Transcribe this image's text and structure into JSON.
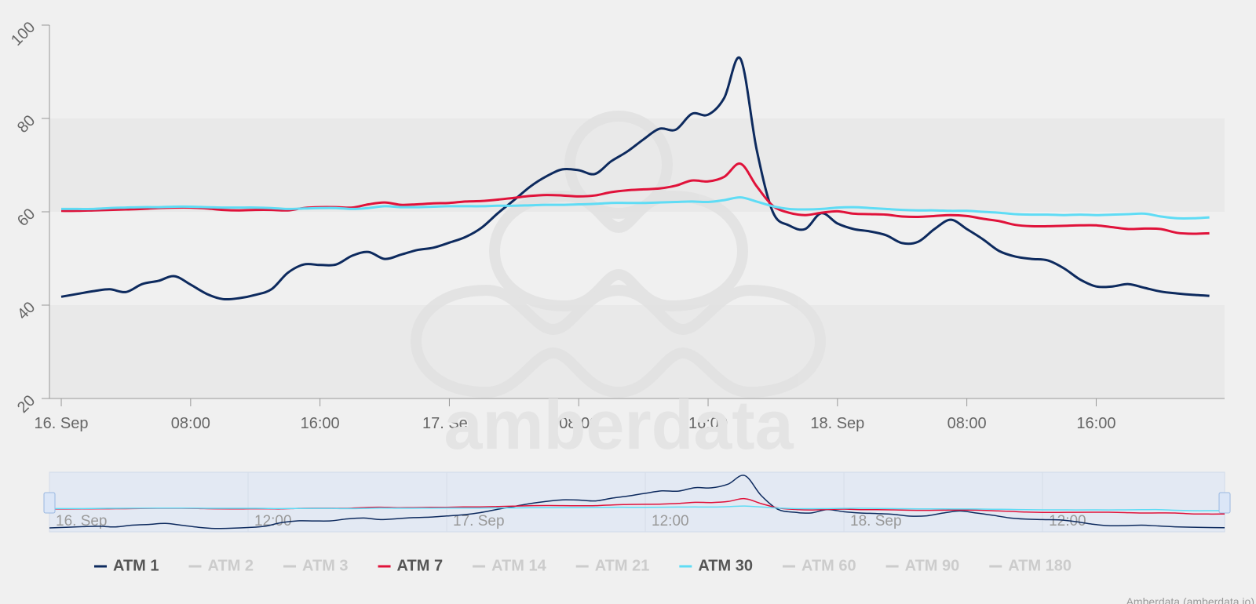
{
  "chart_data": {
    "type": "line",
    "watermark": "amberdata",
    "credits": "Amberdata (amberdata.io)",
    "x": [
      0,
      1,
      2,
      3,
      4,
      5,
      6,
      7,
      8,
      9,
      10,
      11,
      12,
      13,
      14,
      15,
      16,
      17,
      18,
      19,
      20,
      21,
      22,
      23,
      24,
      25,
      26,
      27,
      28,
      29,
      30,
      31,
      32,
      33,
      34,
      35,
      36,
      37,
      38,
      39,
      40,
      41,
      42,
      43,
      44,
      45,
      46,
      47,
      48,
      49,
      50,
      51,
      52,
      53,
      54,
      55,
      56,
      57,
      58,
      59,
      60,
      61,
      62,
      63,
      64,
      65,
      66,
      67,
      68,
      69,
      70,
      71
    ],
    "xlim": [
      -0.73,
      71.94
    ],
    "xticks": [
      {
        "value": 0,
        "label": "16. Sep"
      },
      {
        "value": 8,
        "label": "08:00"
      },
      {
        "value": 16,
        "label": "16:00"
      },
      {
        "value": 24,
        "label": "17. Sep"
      },
      {
        "value": 32,
        "label": "08:00"
      },
      {
        "value": 40,
        "label": "16:00"
      },
      {
        "value": 48,
        "label": "18. Sep"
      },
      {
        "value": 56,
        "label": "08:00"
      },
      {
        "value": 64,
        "label": "16:00"
      }
    ],
    "ylim": [
      20,
      100
    ],
    "yticks": [
      20,
      40,
      60,
      80,
      100
    ],
    "navigator_xlim": [
      0,
      71
    ],
    "navigator_ylim": [
      38,
      96
    ],
    "navigator_xticks": [
      {
        "value": 0,
        "label": "16. Sep"
      },
      {
        "value": 12,
        "label": "12:00"
      },
      {
        "value": 24,
        "label": "17. Sep"
      },
      {
        "value": 36,
        "label": "12:00"
      },
      {
        "value": 48,
        "label": "18. Sep"
      },
      {
        "value": 60,
        "label": "12:00"
      }
    ],
    "series": [
      {
        "name": "ATM 1",
        "color": "#0d2a5e",
        "visible": true,
        "values": [
          41.8,
          42.4,
          43.0,
          43.4,
          42.8,
          44.5,
          45.2,
          46.2,
          44.4,
          42.4,
          41.3,
          41.5,
          42.2,
          43.4,
          46.9,
          48.7,
          48.6,
          48.7,
          50.6,
          51.4,
          49.9,
          50.8,
          51.8,
          52.3,
          53.4,
          54.6,
          56.6,
          59.7,
          62.5,
          65.4,
          67.6,
          69.1,
          68.9,
          68.1,
          70.8,
          72.9,
          75.5,
          77.8,
          77.6,
          81.0,
          80.8,
          84.4,
          92.8,
          73.4,
          60.0,
          57.1,
          56.3,
          59.7,
          57.5,
          56.3,
          55.8,
          55.0,
          53.3,
          53.6,
          56.3,
          58.3,
          56.3,
          54.1,
          51.6,
          50.4,
          49.9,
          49.6,
          47.9,
          45.5,
          44.0,
          44.0,
          44.5,
          43.7,
          42.9,
          42.5,
          42.2,
          42.0
        ]
      },
      {
        "name": "ATM 2",
        "color": "#cccccc",
        "visible": false
      },
      {
        "name": "ATM 3",
        "color": "#cccccc",
        "visible": false
      },
      {
        "name": "ATM 7",
        "color": "#e0123a",
        "visible": true,
        "values": [
          60.2,
          60.2,
          60.3,
          60.4,
          60.5,
          60.6,
          60.8,
          60.9,
          60.9,
          60.7,
          60.4,
          60.3,
          60.4,
          60.4,
          60.3,
          60.8,
          61.0,
          61.0,
          60.9,
          61.6,
          62.0,
          61.5,
          61.6,
          61.8,
          61.9,
          62.2,
          62.3,
          62.6,
          63.0,
          63.4,
          63.6,
          63.5,
          63.3,
          63.5,
          64.2,
          64.6,
          64.8,
          65.0,
          65.6,
          66.7,
          66.5,
          67.5,
          70.3,
          65.5,
          61.3,
          59.8,
          59.3,
          59.8,
          60.1,
          59.6,
          59.5,
          59.4,
          59.0,
          58.9,
          59.1,
          59.3,
          59.1,
          58.5,
          58.0,
          57.2,
          56.9,
          56.9,
          57.0,
          57.1,
          57.1,
          56.7,
          56.3,
          56.4,
          56.3,
          55.5,
          55.3,
          55.4
        ]
      },
      {
        "name": "ATM 14",
        "color": "#cccccc",
        "visible": false
      },
      {
        "name": "ATM 21",
        "color": "#cccccc",
        "visible": false
      },
      {
        "name": "ATM 30",
        "color": "#5fdcf5",
        "visible": true,
        "values": [
          60.6,
          60.6,
          60.6,
          60.8,
          60.9,
          61.0,
          61.0,
          61.1,
          61.1,
          61.0,
          60.9,
          60.9,
          60.9,
          60.8,
          60.6,
          60.7,
          60.8,
          60.8,
          60.6,
          60.8,
          61.2,
          61.0,
          61.0,
          61.1,
          61.2,
          61.2,
          61.2,
          61.3,
          61.3,
          61.4,
          61.5,
          61.5,
          61.6,
          61.7,
          61.9,
          61.9,
          61.9,
          62.0,
          62.1,
          62.2,
          62.1,
          62.5,
          63.1,
          62.2,
          61.2,
          60.6,
          60.5,
          60.6,
          60.9,
          61.0,
          60.8,
          60.6,
          60.4,
          60.3,
          60.3,
          60.2,
          60.2,
          60.0,
          59.8,
          59.5,
          59.4,
          59.4,
          59.3,
          59.4,
          59.3,
          59.4,
          59.5,
          59.6,
          59.0,
          58.6,
          58.6,
          58.8
        ]
      },
      {
        "name": "ATM 60",
        "color": "#cccccc",
        "visible": false
      },
      {
        "name": "ATM 90",
        "color": "#cccccc",
        "visible": false
      },
      {
        "name": "ATM 180",
        "color": "#cccccc",
        "visible": false
      }
    ]
  }
}
